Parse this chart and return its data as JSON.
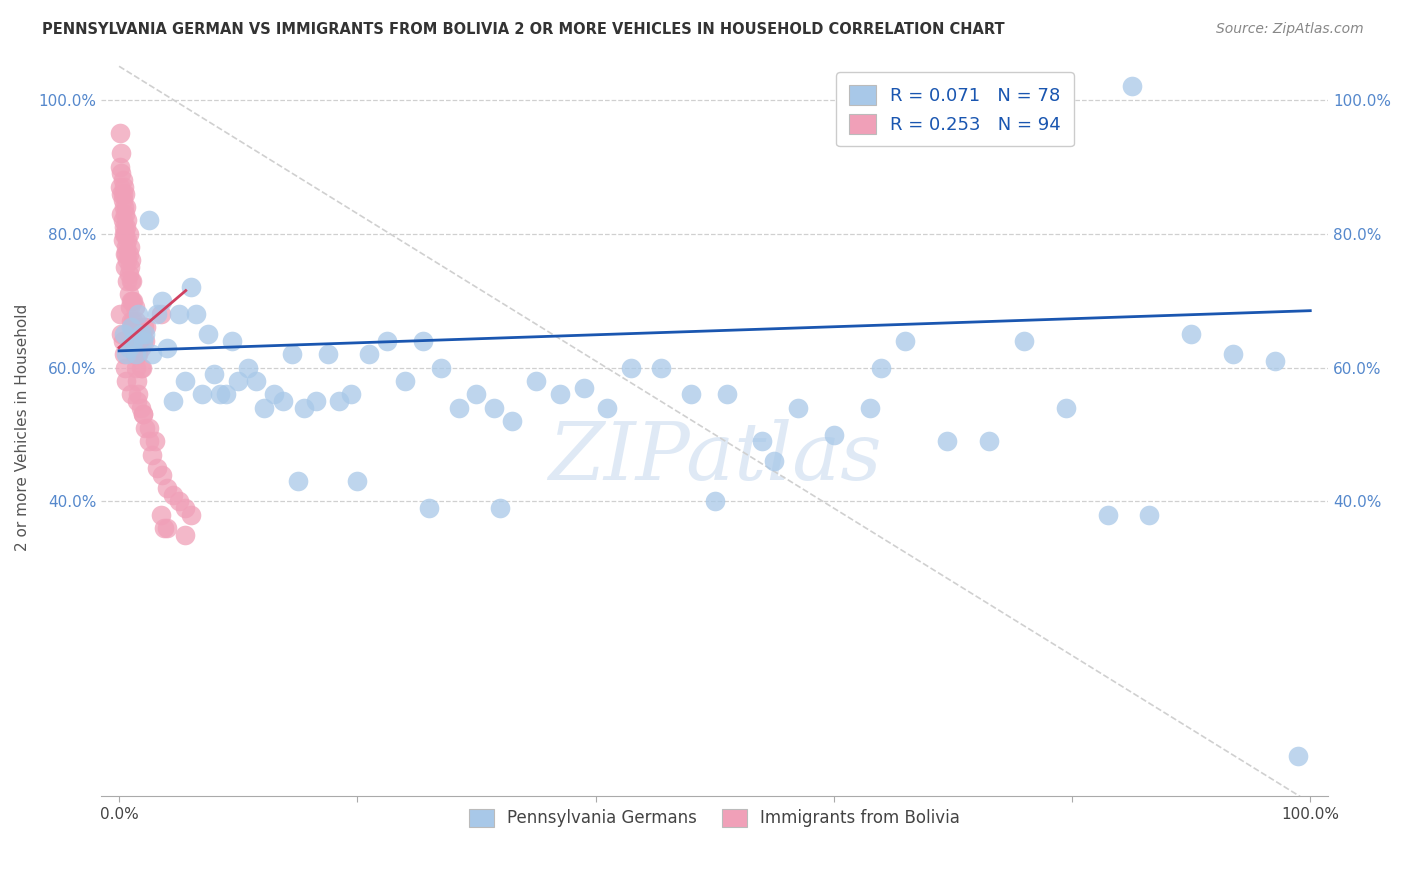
{
  "title": "PENNSYLVANIA GERMAN VS IMMIGRANTS FROM BOLIVIA 2 OR MORE VEHICLES IN HOUSEHOLD CORRELATION CHART",
  "source": "Source: ZipAtlas.com",
  "ylabel": "2 or more Vehicles in Household",
  "watermark": "ZIPatlas",
  "blue_color": "#a8c8e8",
  "pink_color": "#f0a0b8",
  "blue_line_color": "#1a56b0",
  "pink_line_color": "#d04060",
  "diag_line_color": "#d0d0d0",
  "tick_color": "#5588cc",
  "legend_label_blue": "R = 0.071   N = 78",
  "legend_label_pink": "R = 0.253   N = 94",
  "legend_bottom_blue": "Pennsylvania Germans",
  "legend_bottom_pink": "Immigrants from Bolivia",
  "blue_x": [
    0.004,
    0.006,
    0.008,
    0.01,
    0.012,
    0.014,
    0.016,
    0.018,
    0.02,
    0.022,
    0.025,
    0.028,
    0.032,
    0.036,
    0.04,
    0.045,
    0.05,
    0.055,
    0.06,
    0.065,
    0.07,
    0.075,
    0.08,
    0.085,
    0.09,
    0.095,
    0.1,
    0.108,
    0.115,
    0.122,
    0.13,
    0.138,
    0.145,
    0.155,
    0.165,
    0.175,
    0.185,
    0.195,
    0.21,
    0.225,
    0.24,
    0.255,
    0.27,
    0.285,
    0.3,
    0.315,
    0.33,
    0.35,
    0.37,
    0.39,
    0.41,
    0.43,
    0.455,
    0.48,
    0.51,
    0.54,
    0.57,
    0.6,
    0.63,
    0.66,
    0.695,
    0.73,
    0.76,
    0.795,
    0.83,
    0.865,
    0.9,
    0.935,
    0.97,
    0.99,
    0.15,
    0.2,
    0.26,
    0.32,
    0.5,
    0.55,
    0.64,
    0.85
  ],
  "blue_y": [
    0.65,
    0.62,
    0.63,
    0.66,
    0.64,
    0.62,
    0.68,
    0.65,
    0.64,
    0.65,
    0.82,
    0.62,
    0.68,
    0.7,
    0.63,
    0.55,
    0.68,
    0.58,
    0.72,
    0.68,
    0.56,
    0.65,
    0.59,
    0.56,
    0.56,
    0.64,
    0.58,
    0.6,
    0.58,
    0.54,
    0.56,
    0.55,
    0.62,
    0.54,
    0.55,
    0.62,
    0.55,
    0.56,
    0.62,
    0.64,
    0.58,
    0.64,
    0.6,
    0.54,
    0.56,
    0.54,
    0.52,
    0.58,
    0.56,
    0.57,
    0.54,
    0.6,
    0.6,
    0.56,
    0.56,
    0.49,
    0.54,
    0.5,
    0.54,
    0.64,
    0.49,
    0.49,
    0.64,
    0.54,
    0.38,
    0.38,
    0.65,
    0.62,
    0.61,
    0.02,
    0.43,
    0.43,
    0.39,
    0.39,
    0.4,
    0.46,
    0.6,
    1.02
  ],
  "pink_x": [
    0.001,
    0.001,
    0.002,
    0.002,
    0.002,
    0.003,
    0.003,
    0.003,
    0.003,
    0.004,
    0.004,
    0.004,
    0.005,
    0.005,
    0.005,
    0.005,
    0.006,
    0.006,
    0.006,
    0.007,
    0.007,
    0.007,
    0.008,
    0.008,
    0.008,
    0.009,
    0.009,
    0.01,
    0.01,
    0.01,
    0.011,
    0.011,
    0.012,
    0.012,
    0.013,
    0.013,
    0.014,
    0.014,
    0.015,
    0.015,
    0.016,
    0.016,
    0.017,
    0.018,
    0.018,
    0.019,
    0.02,
    0.021,
    0.022,
    0.023,
    0.001,
    0.002,
    0.003,
    0.004,
    0.005,
    0.006,
    0.007,
    0.008,
    0.009,
    0.01,
    0.011,
    0.012,
    0.013,
    0.014,
    0.015,
    0.016,
    0.018,
    0.02,
    0.022,
    0.025,
    0.028,
    0.032,
    0.036,
    0.04,
    0.045,
    0.05,
    0.055,
    0.06,
    0.035,
    0.038,
    0.001,
    0.002,
    0.003,
    0.004,
    0.005,
    0.006,
    0.01,
    0.015,
    0.02,
    0.025,
    0.03,
    0.035,
    0.04,
    0.055
  ],
  "pink_y": [
    0.9,
    0.87,
    0.89,
    0.86,
    0.83,
    0.88,
    0.85,
    0.82,
    0.79,
    0.87,
    0.84,
    0.81,
    0.86,
    0.83,
    0.8,
    0.77,
    0.84,
    0.81,
    0.78,
    0.82,
    0.79,
    0.76,
    0.8,
    0.77,
    0.74,
    0.78,
    0.75,
    0.76,
    0.73,
    0.7,
    0.73,
    0.7,
    0.7,
    0.67,
    0.69,
    0.66,
    0.67,
    0.64,
    0.65,
    0.62,
    0.65,
    0.62,
    0.64,
    0.63,
    0.6,
    0.6,
    0.64,
    0.66,
    0.64,
    0.66,
    0.95,
    0.92,
    0.86,
    0.8,
    0.75,
    0.77,
    0.73,
    0.71,
    0.69,
    0.67,
    0.66,
    0.63,
    0.62,
    0.6,
    0.58,
    0.56,
    0.54,
    0.53,
    0.51,
    0.49,
    0.47,
    0.45,
    0.44,
    0.42,
    0.41,
    0.4,
    0.39,
    0.38,
    0.68,
    0.36,
    0.68,
    0.65,
    0.64,
    0.62,
    0.6,
    0.58,
    0.56,
    0.55,
    0.53,
    0.51,
    0.49,
    0.38,
    0.36,
    0.35
  ]
}
